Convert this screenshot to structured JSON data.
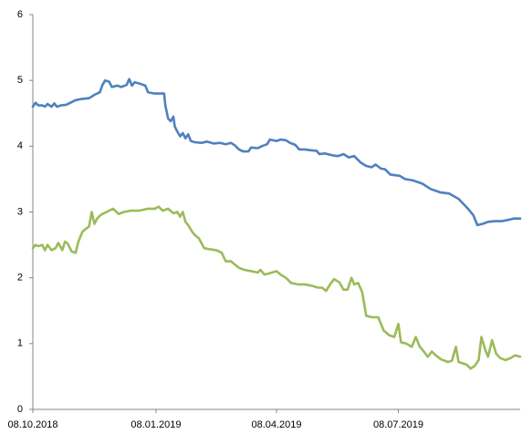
{
  "chart_data": {
    "type": "line",
    "title": "",
    "xlabel": "",
    "ylabel": "",
    "ylim": [
      0,
      6
    ],
    "yticks": [
      0,
      1,
      2,
      3,
      4,
      5,
      6
    ],
    "xlim": [
      "2018-10-08",
      "2019-10-07"
    ],
    "xticks": [
      {
        "date": "2018-10-08",
        "label": "08.10.2018"
      },
      {
        "date": "2019-01-08",
        "label": "08.01.2019"
      },
      {
        "date": "2019-04-08",
        "label": "08.04.2019"
      },
      {
        "date": "2019-07-08",
        "label": "08.07.2019"
      }
    ],
    "grid": false,
    "legend": "none",
    "series": [
      {
        "color": "#4F81BD",
        "points": [
          [
            "2018-10-08",
            4.6
          ],
          [
            "2018-10-10",
            4.66
          ],
          [
            "2018-10-12",
            4.62
          ],
          [
            "2018-10-15",
            4.62
          ],
          [
            "2018-10-17",
            4.6
          ],
          [
            "2018-10-19",
            4.64
          ],
          [
            "2018-10-22",
            4.6
          ],
          [
            "2018-10-24",
            4.65
          ],
          [
            "2018-10-26",
            4.6
          ],
          [
            "2018-10-29",
            4.62
          ],
          [
            "2018-11-02",
            4.63
          ],
          [
            "2018-11-05",
            4.66
          ],
          [
            "2018-11-09",
            4.7
          ],
          [
            "2018-11-14",
            4.72
          ],
          [
            "2018-11-19",
            4.73
          ],
          [
            "2018-11-23",
            4.78
          ],
          [
            "2018-11-27",
            4.82
          ],
          [
            "2018-11-29",
            4.93
          ],
          [
            "2018-12-01",
            5.0
          ],
          [
            "2018-12-04",
            4.98
          ],
          [
            "2018-12-06",
            4.9
          ],
          [
            "2018-12-10",
            4.92
          ],
          [
            "2018-12-13",
            4.9
          ],
          [
            "2018-12-17",
            4.93
          ],
          [
            "2018-12-19",
            5.02
          ],
          [
            "2018-12-21",
            4.92
          ],
          [
            "2018-12-23",
            4.97
          ],
          [
            "2018-12-27",
            4.95
          ],
          [
            "2018-12-31",
            4.92
          ],
          [
            "2019-01-02",
            4.82
          ],
          [
            "2019-01-07",
            4.8
          ],
          [
            "2019-01-10",
            4.8
          ],
          [
            "2019-01-14",
            4.8
          ],
          [
            "2019-01-15",
            4.62
          ],
          [
            "2019-01-17",
            4.42
          ],
          [
            "2019-01-19",
            4.38
          ],
          [
            "2019-01-21",
            4.45
          ],
          [
            "2019-01-22",
            4.3
          ],
          [
            "2019-01-24",
            4.22
          ],
          [
            "2019-01-26",
            4.15
          ],
          [
            "2019-01-28",
            4.2
          ],
          [
            "2019-01-30",
            4.12
          ],
          [
            "2019-02-01",
            4.18
          ],
          [
            "2019-02-03",
            4.08
          ],
          [
            "2019-02-06",
            4.06
          ],
          [
            "2019-02-11",
            4.05
          ],
          [
            "2019-02-15",
            4.07
          ],
          [
            "2019-02-20",
            4.04
          ],
          [
            "2019-02-25",
            4.05
          ],
          [
            "2019-03-01",
            4.03
          ],
          [
            "2019-03-05",
            4.05
          ],
          [
            "2019-03-08",
            4.01
          ],
          [
            "2019-03-11",
            3.95
          ],
          [
            "2019-03-14",
            3.92
          ],
          [
            "2019-03-18",
            3.92
          ],
          [
            "2019-03-20",
            3.98
          ],
          [
            "2019-03-25",
            3.97
          ],
          [
            "2019-03-28",
            4.0
          ],
          [
            "2019-04-01",
            4.03
          ],
          [
            "2019-04-03",
            4.1
          ],
          [
            "2019-04-08",
            4.08
          ],
          [
            "2019-04-11",
            4.1
          ],
          [
            "2019-04-15",
            4.09
          ],
          [
            "2019-04-18",
            4.05
          ],
          [
            "2019-04-22",
            4.02
          ],
          [
            "2019-04-25",
            3.95
          ],
          [
            "2019-04-29",
            3.95
          ],
          [
            "2019-05-03",
            3.94
          ],
          [
            "2019-05-08",
            3.93
          ],
          [
            "2019-05-10",
            3.88
          ],
          [
            "2019-05-14",
            3.89
          ],
          [
            "2019-05-20",
            3.86
          ],
          [
            "2019-05-24",
            3.85
          ],
          [
            "2019-05-28",
            3.88
          ],
          [
            "2019-06-01",
            3.83
          ],
          [
            "2019-06-05",
            3.85
          ],
          [
            "2019-06-10",
            3.75
          ],
          [
            "2019-06-14",
            3.7
          ],
          [
            "2019-06-18",
            3.68
          ],
          [
            "2019-06-21",
            3.72
          ],
          [
            "2019-06-25",
            3.66
          ],
          [
            "2019-06-28",
            3.65
          ],
          [
            "2019-07-02",
            3.57
          ],
          [
            "2019-07-09",
            3.55
          ],
          [
            "2019-07-13",
            3.5
          ],
          [
            "2019-07-19",
            3.48
          ],
          [
            "2019-07-26",
            3.43
          ],
          [
            "2019-08-01",
            3.35
          ],
          [
            "2019-08-08",
            3.3
          ],
          [
            "2019-08-15",
            3.28
          ],
          [
            "2019-08-22",
            3.2
          ],
          [
            "2019-08-29",
            3.05
          ],
          [
            "2019-09-02",
            2.95
          ],
          [
            "2019-09-05",
            2.8
          ],
          [
            "2019-09-09",
            2.82
          ],
          [
            "2019-09-13",
            2.85
          ],
          [
            "2019-09-18",
            2.86
          ],
          [
            "2019-09-23",
            2.86
          ],
          [
            "2019-09-28",
            2.88
          ],
          [
            "2019-10-02",
            2.9
          ],
          [
            "2019-10-07",
            2.9
          ]
        ]
      },
      {
        "color": "#9BBB59",
        "points": [
          [
            "2018-10-08",
            2.45
          ],
          [
            "2018-10-10",
            2.5
          ],
          [
            "2018-10-12",
            2.48
          ],
          [
            "2018-10-15",
            2.5
          ],
          [
            "2018-10-17",
            2.42
          ],
          [
            "2018-10-19",
            2.5
          ],
          [
            "2018-10-22",
            2.42
          ],
          [
            "2018-10-25",
            2.45
          ],
          [
            "2018-10-27",
            2.53
          ],
          [
            "2018-10-30",
            2.42
          ],
          [
            "2018-11-01",
            2.55
          ],
          [
            "2018-11-03",
            2.52
          ],
          [
            "2018-11-06",
            2.4
          ],
          [
            "2018-11-09",
            2.38
          ],
          [
            "2018-11-11",
            2.55
          ],
          [
            "2018-11-14",
            2.7
          ],
          [
            "2018-11-17",
            2.75
          ],
          [
            "2018-11-19",
            2.78
          ],
          [
            "2018-11-21",
            3.0
          ],
          [
            "2018-11-23",
            2.82
          ],
          [
            "2018-11-25",
            2.9
          ],
          [
            "2018-11-28",
            2.96
          ],
          [
            "2018-12-02",
            3.0
          ],
          [
            "2018-12-07",
            3.05
          ],
          [
            "2018-12-11",
            2.97
          ],
          [
            "2018-12-15",
            3.0
          ],
          [
            "2018-12-20",
            3.02
          ],
          [
            "2018-12-26",
            3.02
          ],
          [
            "2019-01-02",
            3.05
          ],
          [
            "2019-01-07",
            3.05
          ],
          [
            "2019-01-10",
            3.08
          ],
          [
            "2019-01-13",
            3.02
          ],
          [
            "2019-01-17",
            3.05
          ],
          [
            "2019-01-21",
            2.98
          ],
          [
            "2019-01-24",
            3.0
          ],
          [
            "2019-01-26",
            2.93
          ],
          [
            "2019-01-28",
            3.0
          ],
          [
            "2019-01-30",
            2.85
          ],
          [
            "2019-02-01",
            2.8
          ],
          [
            "2019-02-04",
            2.7
          ],
          [
            "2019-02-06",
            2.65
          ],
          [
            "2019-02-09",
            2.6
          ],
          [
            "2019-02-13",
            2.45
          ],
          [
            "2019-02-18",
            2.43
          ],
          [
            "2019-02-22",
            2.42
          ],
          [
            "2019-02-26",
            2.38
          ],
          [
            "2019-03-01",
            2.25
          ],
          [
            "2019-03-05",
            2.25
          ],
          [
            "2019-03-08",
            2.2
          ],
          [
            "2019-03-11",
            2.15
          ],
          [
            "2019-03-15",
            2.12
          ],
          [
            "2019-03-20",
            2.1
          ],
          [
            "2019-03-25",
            2.08
          ],
          [
            "2019-03-27",
            2.12
          ],
          [
            "2019-03-30",
            2.05
          ],
          [
            "2019-04-03",
            2.07
          ],
          [
            "2019-04-08",
            2.1
          ],
          [
            "2019-04-11",
            2.05
          ],
          [
            "2019-04-15",
            2.0
          ],
          [
            "2019-04-19",
            1.92
          ],
          [
            "2019-04-24",
            1.9
          ],
          [
            "2019-04-29",
            1.9
          ],
          [
            "2019-05-04",
            1.88
          ],
          [
            "2019-05-09",
            1.85
          ],
          [
            "2019-05-12",
            1.85
          ],
          [
            "2019-05-15",
            1.8
          ],
          [
            "2019-05-18",
            1.9
          ],
          [
            "2019-05-21",
            1.98
          ],
          [
            "2019-05-25",
            1.93
          ],
          [
            "2019-05-28",
            1.82
          ],
          [
            "2019-05-31",
            1.82
          ],
          [
            "2019-06-03",
            2.0
          ],
          [
            "2019-06-05",
            1.9
          ],
          [
            "2019-06-08",
            1.92
          ],
          [
            "2019-06-11",
            1.78
          ],
          [
            "2019-06-14",
            1.42
          ],
          [
            "2019-06-19",
            1.4
          ],
          [
            "2019-06-23",
            1.4
          ],
          [
            "2019-06-27",
            1.2
          ],
          [
            "2019-07-01",
            1.13
          ],
          [
            "2019-07-05",
            1.1
          ],
          [
            "2019-07-08",
            1.3
          ],
          [
            "2019-07-10",
            1.02
          ],
          [
            "2019-07-14",
            1.0
          ],
          [
            "2019-07-18",
            0.95
          ],
          [
            "2019-07-21",
            1.1
          ],
          [
            "2019-07-24",
            0.95
          ],
          [
            "2019-07-27",
            0.88
          ],
          [
            "2019-07-30",
            0.8
          ],
          [
            "2019-08-02",
            0.88
          ],
          [
            "2019-08-05",
            0.82
          ],
          [
            "2019-08-09",
            0.76
          ],
          [
            "2019-08-14",
            0.72
          ],
          [
            "2019-08-17",
            0.74
          ],
          [
            "2019-08-20",
            0.95
          ],
          [
            "2019-08-22",
            0.72
          ],
          [
            "2019-08-25",
            0.7
          ],
          [
            "2019-08-28",
            0.68
          ],
          [
            "2019-08-31",
            0.62
          ],
          [
            "2019-09-03",
            0.66
          ],
          [
            "2019-09-06",
            0.75
          ],
          [
            "2019-09-08",
            1.1
          ],
          [
            "2019-09-11",
            0.9
          ],
          [
            "2019-09-13",
            0.8
          ],
          [
            "2019-09-16",
            1.05
          ],
          [
            "2019-09-19",
            0.85
          ],
          [
            "2019-09-22",
            0.78
          ],
          [
            "2019-09-26",
            0.75
          ],
          [
            "2019-09-30",
            0.78
          ],
          [
            "2019-10-03",
            0.82
          ],
          [
            "2019-10-07",
            0.8
          ]
        ]
      }
    ]
  }
}
